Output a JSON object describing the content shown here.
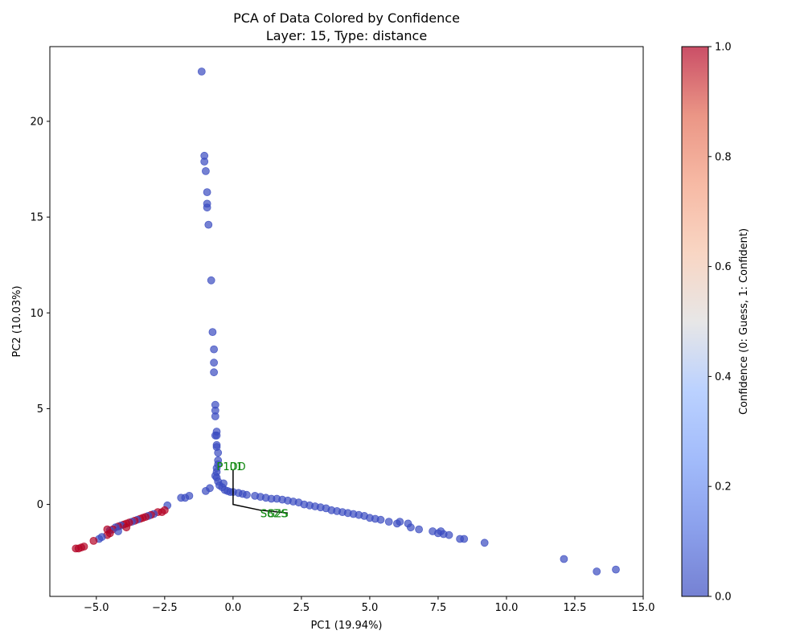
{
  "chart_data": {
    "type": "scatter",
    "title": "PCA of Data Colored by Confidence",
    "subtitle": "Layer: 15, Type: distance",
    "xlabel": "PC1 (19.94%)",
    "ylabel": "PC2 (10.03%)",
    "xlim": [
      -6.7,
      15.0
    ],
    "ylim": [
      -4.8,
      23.9
    ],
    "xticks": [
      -5.0,
      -2.5,
      0.0,
      2.5,
      5.0,
      7.5,
      10.0,
      12.5,
      15.0
    ],
    "xtick_labels": [
      "−5.0",
      "−2.5",
      "0.0",
      "2.5",
      "5.0",
      "7.5",
      "10.0",
      "12.5",
      "15.0"
    ],
    "yticks": [
      0,
      5,
      10,
      15,
      20
    ],
    "ytick_labels": [
      "0",
      "5",
      "10",
      "15",
      "20"
    ],
    "grid": false,
    "colorbar": {
      "label": "Confidence (0: Guess, 1: Confident)",
      "range": [
        0.0,
        1.0
      ],
      "ticks": [
        0.0,
        0.2,
        0.4,
        0.6,
        0.8,
        1.0
      ],
      "tick_labels": [
        "0.0",
        "0.2",
        "0.4",
        "0.6",
        "0.8",
        "1.0"
      ],
      "colormap": "coolwarm"
    },
    "points": [
      {
        "x": -1.15,
        "y": 22.6,
        "c": 0
      },
      {
        "x": -1.05,
        "y": 18.2,
        "c": 0
      },
      {
        "x": -1.05,
        "y": 17.9,
        "c": 0
      },
      {
        "x": -1.0,
        "y": 17.4,
        "c": 0
      },
      {
        "x": -0.95,
        "y": 16.3,
        "c": 0
      },
      {
        "x": -0.95,
        "y": 15.7,
        "c": 0
      },
      {
        "x": -0.95,
        "y": 15.5,
        "c": 0
      },
      {
        "x": -0.9,
        "y": 14.6,
        "c": 0
      },
      {
        "x": -0.8,
        "y": 11.7,
        "c": 0
      },
      {
        "x": -0.75,
        "y": 9.0,
        "c": 0
      },
      {
        "x": -0.7,
        "y": 8.1,
        "c": 0
      },
      {
        "x": -0.7,
        "y": 7.4,
        "c": 0
      },
      {
        "x": -0.7,
        "y": 6.9,
        "c": 0
      },
      {
        "x": -0.65,
        "y": 5.2,
        "c": 0
      },
      {
        "x": -0.65,
        "y": 4.9,
        "c": 0
      },
      {
        "x": -0.65,
        "y": 4.6,
        "c": 0
      },
      {
        "x": -0.6,
        "y": 3.8,
        "c": 0
      },
      {
        "x": -0.65,
        "y": 3.6,
        "c": 0
      },
      {
        "x": -0.6,
        "y": 3.6,
        "c": 0
      },
      {
        "x": -0.6,
        "y": 3.1,
        "c": 0
      },
      {
        "x": -0.6,
        "y": 3.0,
        "c": 0
      },
      {
        "x": -0.55,
        "y": 2.7,
        "c": 0
      },
      {
        "x": -0.55,
        "y": 2.3,
        "c": 0
      },
      {
        "x": -0.55,
        "y": 2.1,
        "c": 0
      },
      {
        "x": -0.6,
        "y": 1.9,
        "c": 0
      },
      {
        "x": -0.6,
        "y": 1.7,
        "c": 0
      },
      {
        "x": -0.65,
        "y": 1.5,
        "c": 0
      },
      {
        "x": -0.6,
        "y": 1.4,
        "c": 0
      },
      {
        "x": -0.55,
        "y": 1.2,
        "c": 0
      },
      {
        "x": -0.5,
        "y": 1.0,
        "c": 0
      },
      {
        "x": -0.35,
        "y": 1.1,
        "c": 0
      },
      {
        "x": -0.4,
        "y": 0.9,
        "c": 0
      },
      {
        "x": -0.3,
        "y": 0.75,
        "c": 0
      },
      {
        "x": -0.2,
        "y": 0.7,
        "c": 0
      },
      {
        "x": -0.1,
        "y": 0.65,
        "c": 0
      },
      {
        "x": 0.0,
        "y": 0.65,
        "c": 0
      },
      {
        "x": 0.2,
        "y": 0.6,
        "c": 0
      },
      {
        "x": 0.35,
        "y": 0.55,
        "c": 0
      },
      {
        "x": 0.5,
        "y": 0.5,
        "c": 0
      },
      {
        "x": 0.8,
        "y": 0.45,
        "c": 0
      },
      {
        "x": 1.0,
        "y": 0.4,
        "c": 0
      },
      {
        "x": 1.2,
        "y": 0.35,
        "c": 0
      },
      {
        "x": 1.4,
        "y": 0.3,
        "c": 0
      },
      {
        "x": 1.6,
        "y": 0.3,
        "c": 0
      },
      {
        "x": 1.8,
        "y": 0.25,
        "c": 0
      },
      {
        "x": 2.0,
        "y": 0.2,
        "c": 0
      },
      {
        "x": 2.2,
        "y": 0.15,
        "c": 0
      },
      {
        "x": 2.4,
        "y": 0.1,
        "c": 0
      },
      {
        "x": 2.6,
        "y": 0.0,
        "c": 0
      },
      {
        "x": 2.8,
        "y": -0.05,
        "c": 0
      },
      {
        "x": 3.0,
        "y": -0.1,
        "c": 0
      },
      {
        "x": 3.2,
        "y": -0.15,
        "c": 0
      },
      {
        "x": 3.4,
        "y": -0.2,
        "c": 0
      },
      {
        "x": 3.6,
        "y": -0.3,
        "c": 0
      },
      {
        "x": 3.8,
        "y": -0.35,
        "c": 0
      },
      {
        "x": 4.0,
        "y": -0.4,
        "c": 0
      },
      {
        "x": 4.2,
        "y": -0.45,
        "c": 0
      },
      {
        "x": 4.4,
        "y": -0.5,
        "c": 0
      },
      {
        "x": 4.6,
        "y": -0.55,
        "c": 0
      },
      {
        "x": 4.8,
        "y": -0.6,
        "c": 0
      },
      {
        "x": 5.0,
        "y": -0.7,
        "c": 0
      },
      {
        "x": 5.2,
        "y": -0.75,
        "c": 0
      },
      {
        "x": 5.4,
        "y": -0.8,
        "c": 0
      },
      {
        "x": 5.7,
        "y": -0.9,
        "c": 0
      },
      {
        "x": 6.0,
        "y": -1.0,
        "c": 0
      },
      {
        "x": 6.1,
        "y": -0.9,
        "c": 0
      },
      {
        "x": 6.4,
        "y": -1.0,
        "c": 0
      },
      {
        "x": 6.5,
        "y": -1.2,
        "c": 0
      },
      {
        "x": 6.8,
        "y": -1.3,
        "c": 0
      },
      {
        "x": 7.3,
        "y": -1.4,
        "c": 0
      },
      {
        "x": 7.5,
        "y": -1.5,
        "c": 0
      },
      {
        "x": 7.6,
        "y": -1.4,
        "c": 0
      },
      {
        "x": 7.7,
        "y": -1.55,
        "c": 0
      },
      {
        "x": 7.9,
        "y": -1.6,
        "c": 0
      },
      {
        "x": 8.3,
        "y": -1.8,
        "c": 0
      },
      {
        "x": 8.45,
        "y": -1.8,
        "c": 0
      },
      {
        "x": 9.2,
        "y": -2.0,
        "c": 0
      },
      {
        "x": 12.1,
        "y": -2.85,
        "c": 0
      },
      {
        "x": 13.3,
        "y": -3.5,
        "c": 0
      },
      {
        "x": 14.0,
        "y": -3.4,
        "c": 0
      },
      {
        "x": -2.4,
        "y": -0.05,
        "c": 0
      },
      {
        "x": -1.6,
        "y": 0.45,
        "c": 0
      },
      {
        "x": -1.75,
        "y": 0.35,
        "c": 0
      },
      {
        "x": -1.9,
        "y": 0.35,
        "c": 0
      },
      {
        "x": -1.0,
        "y": 0.7,
        "c": 0
      },
      {
        "x": -0.85,
        "y": 0.85,
        "c": 0
      },
      {
        "x": -2.5,
        "y": -0.3,
        "c": 1
      },
      {
        "x": -2.6,
        "y": -0.4,
        "c": 1
      },
      {
        "x": -2.75,
        "y": -0.4,
        "c": 1
      },
      {
        "x": -2.9,
        "y": -0.5,
        "c": 0
      },
      {
        "x": -3.0,
        "y": -0.55,
        "c": 1
      },
      {
        "x": -3.1,
        "y": -0.6,
        "c": 0
      },
      {
        "x": -3.2,
        "y": -0.65,
        "c": 1
      },
      {
        "x": -3.3,
        "y": -0.7,
        "c": 1
      },
      {
        "x": -3.4,
        "y": -0.75,
        "c": 1
      },
      {
        "x": -3.5,
        "y": -0.8,
        "c": 0
      },
      {
        "x": -3.6,
        "y": -0.85,
        "c": 1
      },
      {
        "x": -3.7,
        "y": -0.9,
        "c": 0
      },
      {
        "x": -3.8,
        "y": -0.95,
        "c": 1
      },
      {
        "x": -3.9,
        "y": -1.0,
        "c": 1
      },
      {
        "x": -4.0,
        "y": -1.05,
        "c": 1
      },
      {
        "x": -4.1,
        "y": -1.1,
        "c": 0
      },
      {
        "x": -4.2,
        "y": -1.15,
        "c": 1
      },
      {
        "x": -4.3,
        "y": -1.2,
        "c": 0
      },
      {
        "x": -4.4,
        "y": -1.3,
        "c": 1
      },
      {
        "x": -4.5,
        "y": -1.35,
        "c": 0
      },
      {
        "x": -4.6,
        "y": -1.3,
        "c": 1
      },
      {
        "x": -4.5,
        "y": -1.5,
        "c": 1
      },
      {
        "x": -4.6,
        "y": -1.6,
        "c": 1
      },
      {
        "x": -4.8,
        "y": -1.7,
        "c": 0
      },
      {
        "x": -4.9,
        "y": -1.8,
        "c": 0
      },
      {
        "x": -5.1,
        "y": -1.9,
        "c": 1
      },
      {
        "x": -4.2,
        "y": -1.4,
        "c": 0
      },
      {
        "x": -3.9,
        "y": -1.2,
        "c": 1
      },
      {
        "x": -5.45,
        "y": -2.2,
        "c": 1
      },
      {
        "x": -5.55,
        "y": -2.25,
        "c": 1
      },
      {
        "x": -5.65,
        "y": -2.3,
        "c": 1
      },
      {
        "x": -5.75,
        "y": -2.3,
        "c": 1
      }
    ],
    "annotation_line": [
      [
        0.0,
        1.8
      ],
      [
        0.0,
        0.0
      ],
      [
        1.0,
        -0.3
      ],
      [
        2.0,
        -0.45
      ]
    ],
    "annotations": [
      {
        "x": -0.6,
        "y": 2.0,
        "text": "P1DD"
      },
      {
        "x": -0.6,
        "y": 2.0,
        "text": "P101"
      },
      {
        "x": 1.0,
        "y": -0.45,
        "text": "SG2S"
      },
      {
        "x": 1.0,
        "y": -0.45,
        "text": "S8ZS"
      }
    ]
  }
}
